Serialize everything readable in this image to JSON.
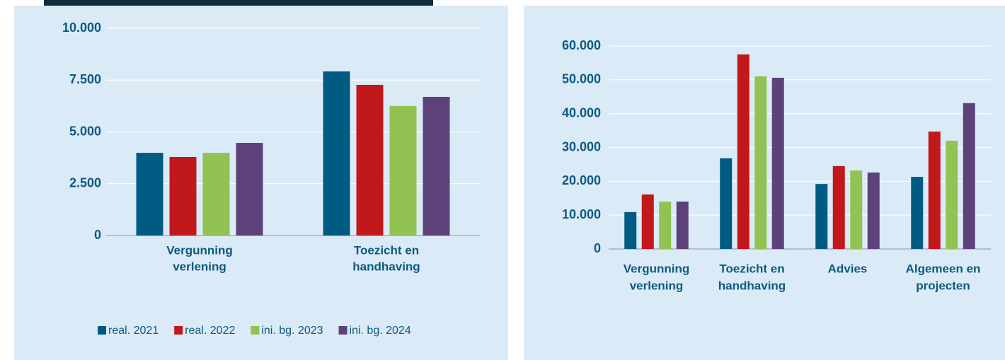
{
  "chart_data": [
    {
      "type": "bar",
      "categories": [
        [
          "Vergunning",
          "verlening"
        ],
        [
          "Toezicht en",
          "handhaving"
        ]
      ],
      "series": [
        {
          "name": "real. 2021",
          "color": "#005b82",
          "values": [
            3990,
            7920
          ]
        },
        {
          "name": "real. 2022",
          "color": "#c0181b",
          "values": [
            3790,
            7270
          ]
        },
        {
          "name": "ini. bg. 2023",
          "color": "#92c352",
          "values": [
            3990,
            6250
          ]
        },
        {
          "name": "ini. bg. 2024",
          "color": "#5c4278",
          "values": [
            4470,
            6690
          ]
        }
      ],
      "ylim": [
        0,
        10000
      ],
      "yticks": [
        {
          "value": 0,
          "label": "0"
        },
        {
          "value": 2500,
          "label": "2.500"
        },
        {
          "value": 5000,
          "label": "5.000"
        },
        {
          "value": 7500,
          "label": "7.500"
        },
        {
          "value": 10000,
          "label": "10.000"
        }
      ],
      "grid": true,
      "legend": "bottom"
    },
    {
      "type": "bar",
      "categories": [
        [
          "Vergunning",
          "verlening"
        ],
        [
          "Toezicht en",
          "handhaving"
        ],
        [
          "Advies"
        ],
        [
          "Algemeen en",
          "projecten"
        ]
      ],
      "series": [
        {
          "color": "#005b82",
          "values": [
            10900,
            26800,
            19200,
            21300
          ]
        },
        {
          "color": "#c0181b",
          "values": [
            16100,
            57500,
            24500,
            34700
          ]
        },
        {
          "color": "#92c352",
          "values": [
            14000,
            51000,
            23200,
            32000
          ]
        },
        {
          "color": "#5c4278",
          "values": [
            14000,
            50600,
            22600,
            43100
          ]
        }
      ],
      "ylim": [
        0,
        60000
      ],
      "yticks": [
        {
          "value": 0,
          "label": "0"
        },
        {
          "value": 10000,
          "label": "10.000"
        },
        {
          "value": 20000,
          "label": "20.000"
        },
        {
          "value": 30000,
          "label": "30.000"
        },
        {
          "value": 40000,
          "label": "40.000"
        },
        {
          "value": 50000,
          "label": "50.000"
        },
        {
          "value": 60000,
          "label": "60.000"
        }
      ],
      "grid": true
    }
  ]
}
